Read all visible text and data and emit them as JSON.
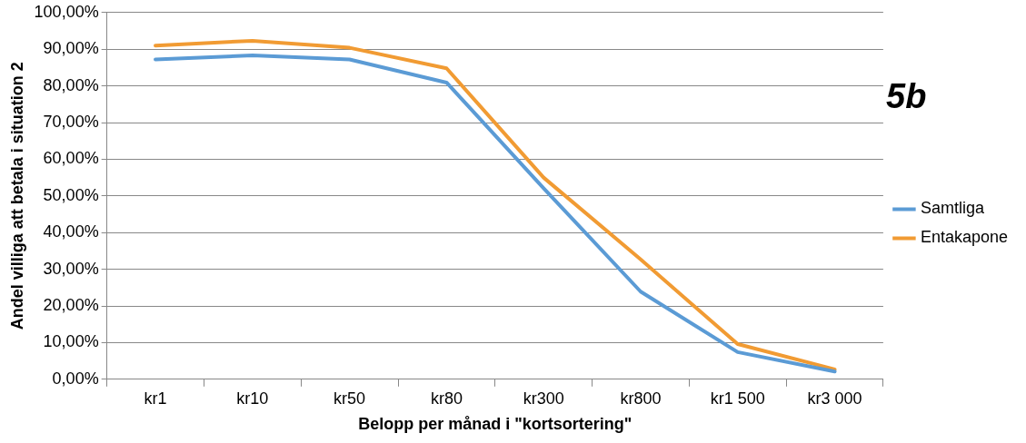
{
  "chart_data": {
    "type": "line",
    "xlabel": "Belopp per månad i \"kortsortering\"",
    "ylabel": "Andel villiga att betala i situation 2",
    "annotations": [
      "5b"
    ],
    "categories": [
      "kr1",
      "kr10",
      "kr50",
      "kr80",
      "kr300",
      "kr800",
      "kr1 500",
      "kr3 000"
    ],
    "series": [
      {
        "name": "Samtliga",
        "color": "#5b9bd5",
        "values": [
          87.2,
          88.3,
          87.2,
          80.9,
          52.1,
          23.9,
          7.4,
          2.1
        ]
      },
      {
        "name": "Entakapone",
        "color": "#f19b33",
        "values": [
          91.0,
          92.3,
          90.4,
          84.8,
          55.0,
          32.7,
          9.6,
          2.7
        ]
      }
    ],
    "ylim": [
      0,
      100
    ],
    "yticks": [
      {
        "value": 0,
        "label": "0,00%"
      },
      {
        "value": 10,
        "label": "10,00%"
      },
      {
        "value": 20,
        "label": "20,00%"
      },
      {
        "value": 30,
        "label": "30,00%"
      },
      {
        "value": 40,
        "label": "40,00%"
      },
      {
        "value": 50,
        "label": "50,00%"
      },
      {
        "value": 60,
        "label": "60,00%"
      },
      {
        "value": 70,
        "label": "70,00%"
      },
      {
        "value": 80,
        "label": "80,00%"
      },
      {
        "value": 90,
        "label": "90,00%"
      },
      {
        "value": 100,
        "label": "100,00%"
      }
    ],
    "grid": "y",
    "legend": "right",
    "marker": "none",
    "line_style": "solid"
  }
}
